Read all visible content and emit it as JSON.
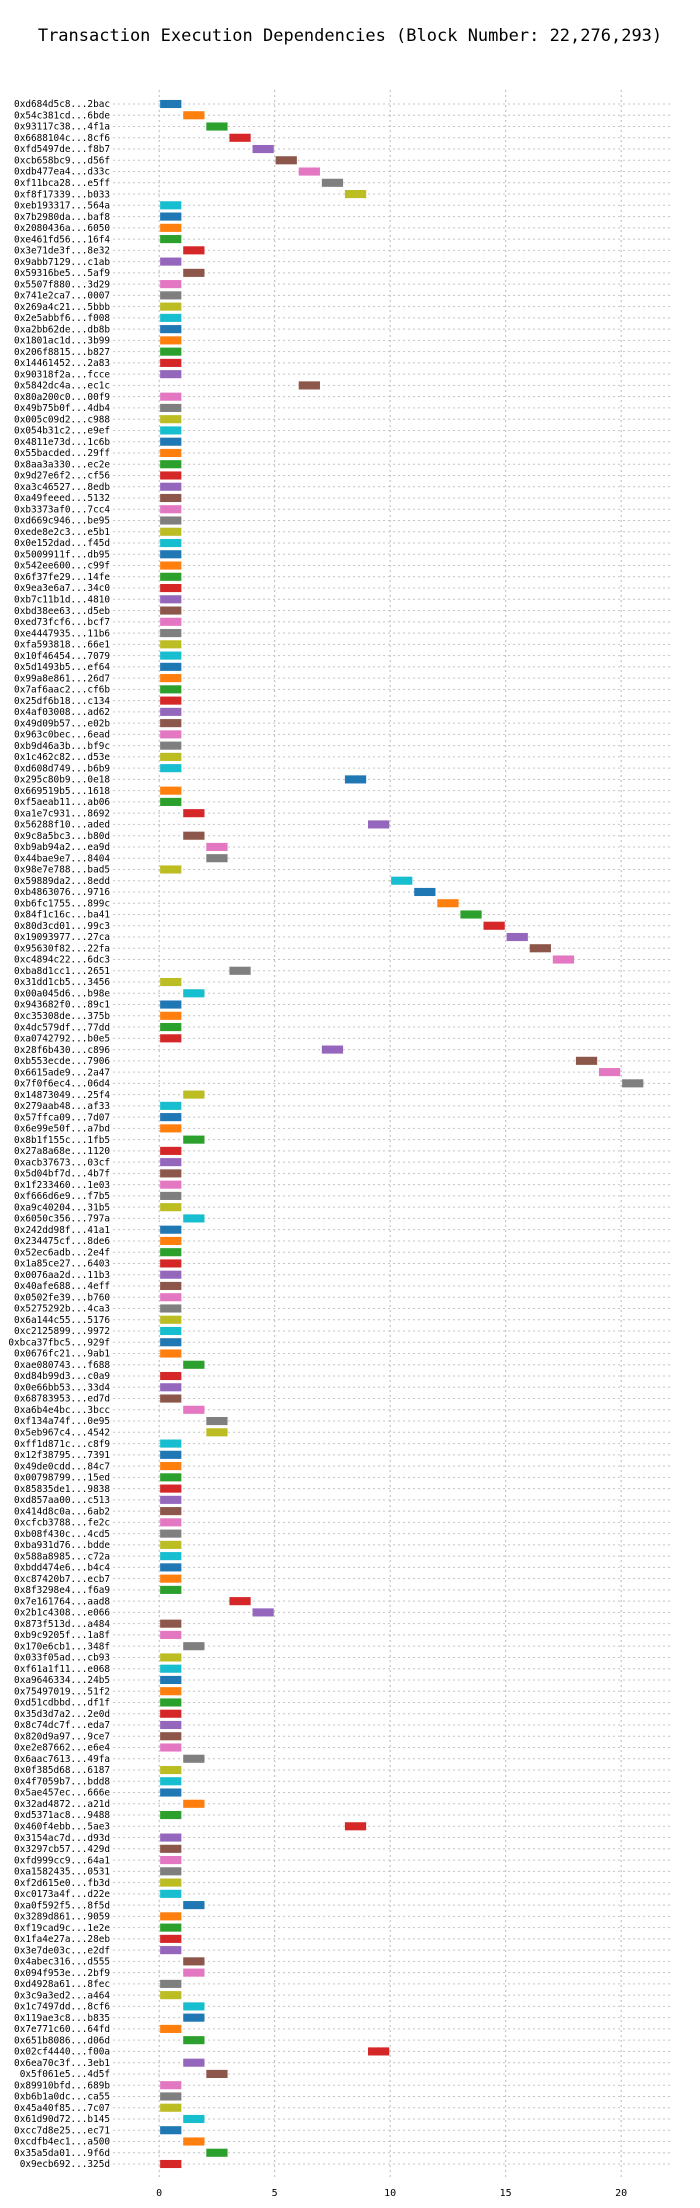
{
  "chart_data": {
    "type": "gantt",
    "title": "Transaction Execution Dependencies (Block Number: 22,276,293)",
    "xlabel": "",
    "ylabel": "",
    "xlim": [
      -2,
      22.2
    ],
    "xticks": [
      0,
      5,
      10,
      15,
      20
    ],
    "grid": "dotted",
    "legend": "none",
    "palette": [
      "#1f77b4",
      "#ff7f0e",
      "#2ca02c",
      "#d62728",
      "#9467bd",
      "#8c564b",
      "#e377c2",
      "#7f7f7f",
      "#bcbd22",
      "#17becf"
    ],
    "rows": [
      {
        "label": "0xd684d5c8...2bac",
        "start": 0,
        "end": 1
      },
      {
        "label": "0x54c381cd...6bde",
        "start": 1,
        "end": 2
      },
      {
        "label": "0x93117c38...4f1a",
        "start": 2,
        "end": 3
      },
      {
        "label": "0x6688104c...8cf6",
        "start": 3,
        "end": 4
      },
      {
        "label": "0xfd5497de...f8b7",
        "start": 4,
        "end": 5
      },
      {
        "label": "0xcb658bc9...d56f",
        "start": 5,
        "end": 6
      },
      {
        "label": "0xdb477ea4...d33c",
        "start": 6,
        "end": 7
      },
      {
        "label": "0xf11bca28...e5ff",
        "start": 7,
        "end": 8
      },
      {
        "label": "0xf8f17339...b033",
        "start": 8,
        "end": 9
      },
      {
        "label": "0xeb193317...564a",
        "start": 0,
        "end": 1
      },
      {
        "label": "0x7b2980da...baf8",
        "start": 0,
        "end": 1
      },
      {
        "label": "0x2080436a...6050",
        "start": 0,
        "end": 1
      },
      {
        "label": "0xe461fd56...16f4",
        "start": 0,
        "end": 1
      },
      {
        "label": "0x3e71de3f...8e32",
        "start": 1,
        "end": 2
      },
      {
        "label": "0x9abb7129...c1ab",
        "start": 0,
        "end": 1
      },
      {
        "label": "0x59316be5...5af9",
        "start": 1,
        "end": 2
      },
      {
        "label": "0x5507f880...3d29",
        "start": 0,
        "end": 1
      },
      {
        "label": "0x741e2ca7...0007",
        "start": 0,
        "end": 1
      },
      {
        "label": "0x269a4c21...5bbb",
        "start": 0,
        "end": 1
      },
      {
        "label": "0x2e5abbf6...f008",
        "start": 0,
        "end": 1
      },
      {
        "label": "0xa2bb62de...db8b",
        "start": 0,
        "end": 1
      },
      {
        "label": "0x1801ac1d...3b99",
        "start": 0,
        "end": 1
      },
      {
        "label": "0x206f8815...b827",
        "start": 0,
        "end": 1
      },
      {
        "label": "0x14461452...2a83",
        "start": 0,
        "end": 1
      },
      {
        "label": "0x90318f2a...fcce",
        "start": 0,
        "end": 1
      },
      {
        "label": "0x5842dc4a...ec1c",
        "start": 6,
        "end": 7
      },
      {
        "label": "0x80a200c0...00f9",
        "start": 0,
        "end": 1
      },
      {
        "label": "0x49b75b0f...4db4",
        "start": 0,
        "end": 1
      },
      {
        "label": "0x005c09d2...c988",
        "start": 0,
        "end": 1
      },
      {
        "label": "0x054b31c2...e9ef",
        "start": 0,
        "end": 1
      },
      {
        "label": "0x4811e73d...1c6b",
        "start": 0,
        "end": 1
      },
      {
        "label": "0x55bacded...29ff",
        "start": 0,
        "end": 1
      },
      {
        "label": "0x8aa3a330...ec2e",
        "start": 0,
        "end": 1
      },
      {
        "label": "0x9d27e6f2...cf56",
        "start": 0,
        "end": 1
      },
      {
        "label": "0xa3c46527...8edb",
        "start": 0,
        "end": 1
      },
      {
        "label": "0xa49feeed...5132",
        "start": 0,
        "end": 1
      },
      {
        "label": "0xb3373af0...7cc4",
        "start": 0,
        "end": 1
      },
      {
        "label": "0xd669c946...be95",
        "start": 0,
        "end": 1
      },
      {
        "label": "0xede8e2c3...e5b1",
        "start": 0,
        "end": 1
      },
      {
        "label": "0x0e152dad...f45d",
        "start": 0,
        "end": 1
      },
      {
        "label": "0x5009911f...db95",
        "start": 0,
        "end": 1
      },
      {
        "label": "0x542ee600...c99f",
        "start": 0,
        "end": 1
      },
      {
        "label": "0x6f37fe29...14fe",
        "start": 0,
        "end": 1
      },
      {
        "label": "0x9ea3e6a7...34c0",
        "start": 0,
        "end": 1
      },
      {
        "label": "0xb7c11b1d...4810",
        "start": 0,
        "end": 1
      },
      {
        "label": "0xbd38ee63...d5eb",
        "start": 0,
        "end": 1
      },
      {
        "label": "0xed73fcf6...bcf7",
        "start": 0,
        "end": 1
      },
      {
        "label": "0xe4447935...11b6",
        "start": 0,
        "end": 1
      },
      {
        "label": "0xfa593818...66e1",
        "start": 0,
        "end": 1
      },
      {
        "label": "0x10f46454...7079",
        "start": 0,
        "end": 1
      },
      {
        "label": "0x5d1493b5...ef64",
        "start": 0,
        "end": 1
      },
      {
        "label": "0x99a8e861...26d7",
        "start": 0,
        "end": 1
      },
      {
        "label": "0x7af6aac2...cf6b",
        "start": 0,
        "end": 1
      },
      {
        "label": "0x25df6b18...c134",
        "start": 0,
        "end": 1
      },
      {
        "label": "0x4af03008...ad62",
        "start": 0,
        "end": 1
      },
      {
        "label": "0x49d09b57...e02b",
        "start": 0,
        "end": 1
      },
      {
        "label": "0x963c0bec...6ead",
        "start": 0,
        "end": 1
      },
      {
        "label": "0xb9d46a3b...bf9c",
        "start": 0,
        "end": 1
      },
      {
        "label": "0x1c462c82...d53e",
        "start": 0,
        "end": 1
      },
      {
        "label": "0xd608d749...b6b9",
        "start": 0,
        "end": 1
      },
      {
        "label": "0x295c80b9...0e18",
        "start": 8,
        "end": 9
      },
      {
        "label": "0x669519b5...1618",
        "start": 0,
        "end": 1
      },
      {
        "label": "0xf5aeab11...ab06",
        "start": 0,
        "end": 1
      },
      {
        "label": "0xa1e7c931...8692",
        "start": 1,
        "end": 2
      },
      {
        "label": "0x56288f10...aded",
        "start": 9,
        "end": 10
      },
      {
        "label": "0x9c8a5bc3...b80d",
        "start": 1,
        "end": 2
      },
      {
        "label": "0xb9ab94a2...ea9d",
        "start": 2,
        "end": 3
      },
      {
        "label": "0x44bae9e7...8404",
        "start": 2,
        "end": 3
      },
      {
        "label": "0x98e7e788...bad5",
        "start": 0,
        "end": 1
      },
      {
        "label": "0x59889da2...8edd",
        "start": 10,
        "end": 11
      },
      {
        "label": "0xb4863076...9716",
        "start": 11,
        "end": 12
      },
      {
        "label": "0xb6fc1755...899c",
        "start": 12,
        "end": 13
      },
      {
        "label": "0x84f1c16c...ba41",
        "start": 13,
        "end": 14
      },
      {
        "label": "0x80d3cd01...99c3",
        "start": 14,
        "end": 15
      },
      {
        "label": "0x19093977...27ca",
        "start": 15,
        "end": 16
      },
      {
        "label": "0x95630f82...22fa",
        "start": 16,
        "end": 17
      },
      {
        "label": "0xc4894c22...6dc3",
        "start": 17,
        "end": 18
      },
      {
        "label": "0xba8d1cc1...2651",
        "start": 3,
        "end": 4
      },
      {
        "label": "0x31dd1cb5...3456",
        "start": 0,
        "end": 1
      },
      {
        "label": "0x00a045d6...b98e",
        "start": 1,
        "end": 2
      },
      {
        "label": "0x943682f0...89c1",
        "start": 0,
        "end": 1
      },
      {
        "label": "0xc35308de...375b",
        "start": 0,
        "end": 1
      },
      {
        "label": "0x4dc579df...77dd",
        "start": 0,
        "end": 1
      },
      {
        "label": "0xa0742792...b0e5",
        "start": 0,
        "end": 1
      },
      {
        "label": "0x28f6b430...c896",
        "start": 7,
        "end": 8
      },
      {
        "label": "0xb553ecde...7906",
        "start": 18,
        "end": 19
      },
      {
        "label": "0x6615ade9...2a47",
        "start": 19,
        "end": 20
      },
      {
        "label": "0x7f0f6ec4...06d4",
        "start": 20,
        "end": 21
      },
      {
        "label": "0x14873049...25f4",
        "start": 1,
        "end": 2
      },
      {
        "label": "0x279aab48...af33",
        "start": 0,
        "end": 1
      },
      {
        "label": "0x57ffca09...7d07",
        "start": 0,
        "end": 1
      },
      {
        "label": "0x6e99e50f...a7bd",
        "start": 0,
        "end": 1
      },
      {
        "label": "0x8b1f155c...1fb5",
        "start": 1,
        "end": 2
      },
      {
        "label": "0x27a8a68e...1120",
        "start": 0,
        "end": 1
      },
      {
        "label": "0xacb37673...03cf",
        "start": 0,
        "end": 1
      },
      {
        "label": "0x5d04bf7d...4b7f",
        "start": 0,
        "end": 1
      },
      {
        "label": "0x1f233460...1e03",
        "start": 0,
        "end": 1
      },
      {
        "label": "0xf666d6e9...f7b5",
        "start": 0,
        "end": 1
      },
      {
        "label": "0xa9c40204...31b5",
        "start": 0,
        "end": 1
      },
      {
        "label": "0x6050c356...797a",
        "start": 1,
        "end": 2
      },
      {
        "label": "0x242dd98f...41a1",
        "start": 0,
        "end": 1
      },
      {
        "label": "0x234475cf...8de6",
        "start": 0,
        "end": 1
      },
      {
        "label": "0x52ec6adb...2e4f",
        "start": 0,
        "end": 1
      },
      {
        "label": "0x1a85ce27...6403",
        "start": 0,
        "end": 1
      },
      {
        "label": "0x0076aa2d...11b3",
        "start": 0,
        "end": 1
      },
      {
        "label": "0x40afe688...4eff",
        "start": 0,
        "end": 1
      },
      {
        "label": "0x0502fe39...b760",
        "start": 0,
        "end": 1
      },
      {
        "label": "0x5275292b...4ca3",
        "start": 0,
        "end": 1
      },
      {
        "label": "0x6a144c55...5176",
        "start": 0,
        "end": 1
      },
      {
        "label": "0xc2125899...9972",
        "start": 0,
        "end": 1
      },
      {
        "label": "0xbca37fbc5...929f",
        "start": 0,
        "end": 1
      },
      {
        "label": "0x0676fc21...9ab1",
        "start": 0,
        "end": 1
      },
      {
        "label": "0xae080743...f688",
        "start": 1,
        "end": 2
      },
      {
        "label": "0xd84b99d3...c0a9",
        "start": 0,
        "end": 1
      },
      {
        "label": "0x0e66bb53...33d4",
        "start": 0,
        "end": 1
      },
      {
        "label": "0x68783953...ed7d",
        "start": 0,
        "end": 1
      },
      {
        "label": "0xa6b4e4bc...3bcc",
        "start": 1,
        "end": 2
      },
      {
        "label": "0xf134a74f...0e95",
        "start": 2,
        "end": 3
      },
      {
        "label": "0x5eb967c4...4542",
        "start": 2,
        "end": 3
      },
      {
        "label": "0xff1d871c...c8f9",
        "start": 0,
        "end": 1
      },
      {
        "label": "0x12f38795...7391",
        "start": 0,
        "end": 1
      },
      {
        "label": "0x49de0cdd...84c7",
        "start": 0,
        "end": 1
      },
      {
        "label": "0x00798799...15ed",
        "start": 0,
        "end": 1
      },
      {
        "label": "0x85835de1...9838",
        "start": 0,
        "end": 1
      },
      {
        "label": "0xd857aa00...c513",
        "start": 0,
        "end": 1
      },
      {
        "label": "0x414d8c0a...6ab2",
        "start": 0,
        "end": 1
      },
      {
        "label": "0xcfcb3788...fe2c",
        "start": 0,
        "end": 1
      },
      {
        "label": "0xb08f430c...4cd5",
        "start": 0,
        "end": 1
      },
      {
        "label": "0xba931d76...bdde",
        "start": 0,
        "end": 1
      },
      {
        "label": "0x588a8985...c72a",
        "start": 0,
        "end": 1
      },
      {
        "label": "0xbdd474e6...b4c4",
        "start": 0,
        "end": 1
      },
      {
        "label": "0xc87420b7...ecb7",
        "start": 0,
        "end": 1
      },
      {
        "label": "0x8f3298e4...f6a9",
        "start": 0,
        "end": 1
      },
      {
        "label": "0x7e161764...aad8",
        "start": 3,
        "end": 4
      },
      {
        "label": "0x2b1c4308...e066",
        "start": 4,
        "end": 5
      },
      {
        "label": "0x873f513d...a484",
        "start": 0,
        "end": 1
      },
      {
        "label": "0xb9c9205f...1a8f",
        "start": 0,
        "end": 1
      },
      {
        "label": "0x170e6cb1...348f",
        "start": 1,
        "end": 2
      },
      {
        "label": "0x033f05ad...cb93",
        "start": 0,
        "end": 1
      },
      {
        "label": "0xf61a1f11...e068",
        "start": 0,
        "end": 1
      },
      {
        "label": "0xa9646334...24b5",
        "start": 0,
        "end": 1
      },
      {
        "label": "0x75497019...51f2",
        "start": 0,
        "end": 1
      },
      {
        "label": "0xd51cdbbd...df1f",
        "start": 0,
        "end": 1
      },
      {
        "label": "0x35d3d7a2...2e0d",
        "start": 0,
        "end": 1
      },
      {
        "label": "0x8c74dc7f...eda7",
        "start": 0,
        "end": 1
      },
      {
        "label": "0x820d9a97...9ce7",
        "start": 0,
        "end": 1
      },
      {
        "label": "0xe2e87662...e6e4",
        "start": 0,
        "end": 1
      },
      {
        "label": "0x6aac7613...49fa",
        "start": 1,
        "end": 2
      },
      {
        "label": "0x0f385d68...6187",
        "start": 0,
        "end": 1
      },
      {
        "label": "0x4f7059b7...bdd8",
        "start": 0,
        "end": 1
      },
      {
        "label": "0x5ae457ec...666e",
        "start": 0,
        "end": 1
      },
      {
        "label": "0x32ad4872...a21d",
        "start": 1,
        "end": 2
      },
      {
        "label": "0xd5371ac8...9488",
        "start": 0,
        "end": 1
      },
      {
        "label": "0x460f4ebb...5ae3",
        "start": 8,
        "end": 9
      },
      {
        "label": "0x3154ac7d...d93d",
        "start": 0,
        "end": 1
      },
      {
        "label": "0x3297cb57...429d",
        "start": 0,
        "end": 1
      },
      {
        "label": "0xfd999cc9...64a1",
        "start": 0,
        "end": 1
      },
      {
        "label": "0xa1582435...0531",
        "start": 0,
        "end": 1
      },
      {
        "label": "0xf2d615e0...fb3d",
        "start": 0,
        "end": 1
      },
      {
        "label": "0xc0173a4f...d22e",
        "start": 0,
        "end": 1
      },
      {
        "label": "0xa0f592f5...8f5d",
        "start": 1,
        "end": 2
      },
      {
        "label": "0x3289d861...9059",
        "start": 0,
        "end": 1
      },
      {
        "label": "0xf19cad9c...1e2e",
        "start": 0,
        "end": 1
      },
      {
        "label": "0x1fa4e27a...28eb",
        "start": 0,
        "end": 1
      },
      {
        "label": "0x3e7de03c...e2df",
        "start": 0,
        "end": 1
      },
      {
        "label": "0x4abec316...d555",
        "start": 1,
        "end": 2
      },
      {
        "label": "0x094f953e...2bf9",
        "start": 1,
        "end": 2
      },
      {
        "label": "0xd4928a61...8fec",
        "start": 0,
        "end": 1
      },
      {
        "label": "0x3c9a3ed2...a464",
        "start": 0,
        "end": 1
      },
      {
        "label": "0x1c7497dd...8cf6",
        "start": 1,
        "end": 2
      },
      {
        "label": "0x119ae3c8...b835",
        "start": 1,
        "end": 2
      },
      {
        "label": "0x7e771c60...64fd",
        "start": 0,
        "end": 1
      },
      {
        "label": "0x651b8086...d06d",
        "start": 1,
        "end": 2
      },
      {
        "label": "0x02cf4440...f00a",
        "start": 9,
        "end": 10
      },
      {
        "label": "0x6ea70c3f...3eb1",
        "start": 1,
        "end": 2
      },
      {
        "label": "0x5f061e5...4d5f",
        "start": 2,
        "end": 3
      },
      {
        "label": "0x89910bfd...689b",
        "start": 0,
        "end": 1
      },
      {
        "label": "0xb6b1a0dc...ca55",
        "start": 0,
        "end": 1
      },
      {
        "label": "0x45a40f85...7c07",
        "start": 0,
        "end": 1
      },
      {
        "label": "0x61d90d72...b145",
        "start": 1,
        "end": 2
      },
      {
        "label": "0xcc7d8e25...ec71",
        "start": 0,
        "end": 1
      },
      {
        "label": "0xcdfb4ec1...a500",
        "start": 1,
        "end": 2
      },
      {
        "label": "0x35a5da01...9f6d",
        "start": 2,
        "end": 3
      },
      {
        "label": "0x9ecb692...325d",
        "start": 0,
        "end": 1
      }
    ]
  }
}
